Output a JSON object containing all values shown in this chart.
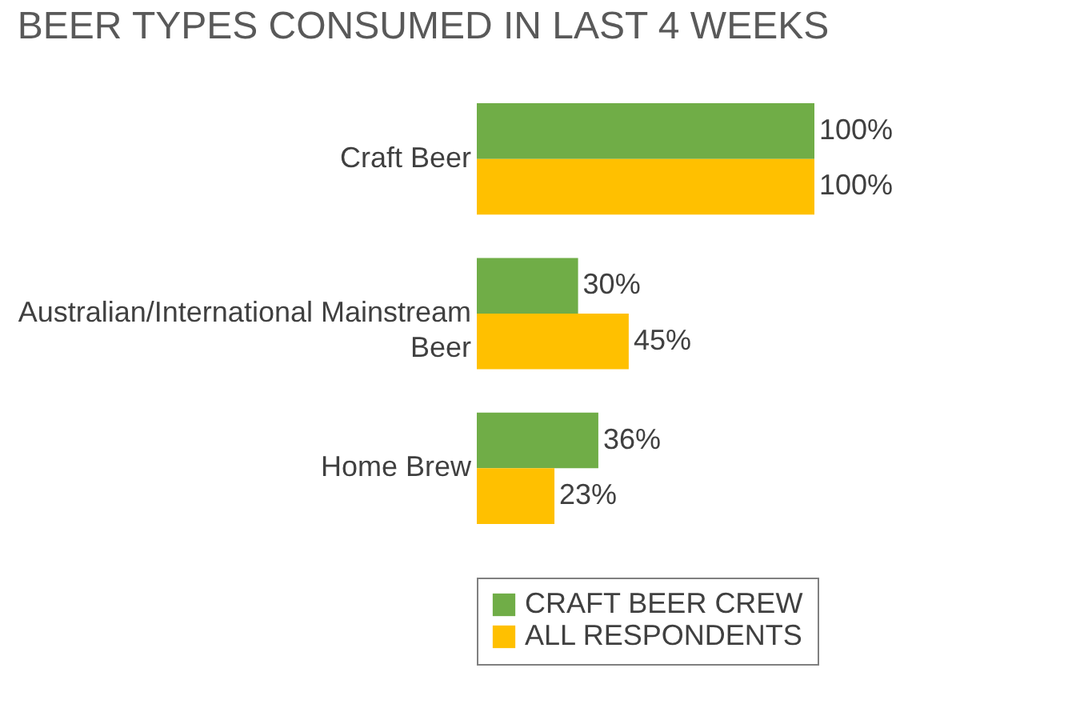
{
  "chart_data": {
    "type": "bar",
    "orientation": "horizontal",
    "title": "BEER TYPES CONSUMED IN LAST 4 WEEKS",
    "categories": [
      "Craft Beer",
      "Australian/International Mainstream Beer",
      "Home Brew"
    ],
    "series": [
      {
        "name": "CRAFT BEER CREW",
        "color": "#70ad47",
        "values": [
          100,
          30,
          36
        ],
        "value_labels": [
          "100%",
          "30%",
          "36%"
        ]
      },
      {
        "name": "ALL RESPONDENTS",
        "color": "#ffc000",
        "values": [
          100,
          45,
          23
        ],
        "value_labels": [
          "100%",
          "45%",
          "23%"
        ]
      }
    ],
    "legend": "bottom"
  }
}
